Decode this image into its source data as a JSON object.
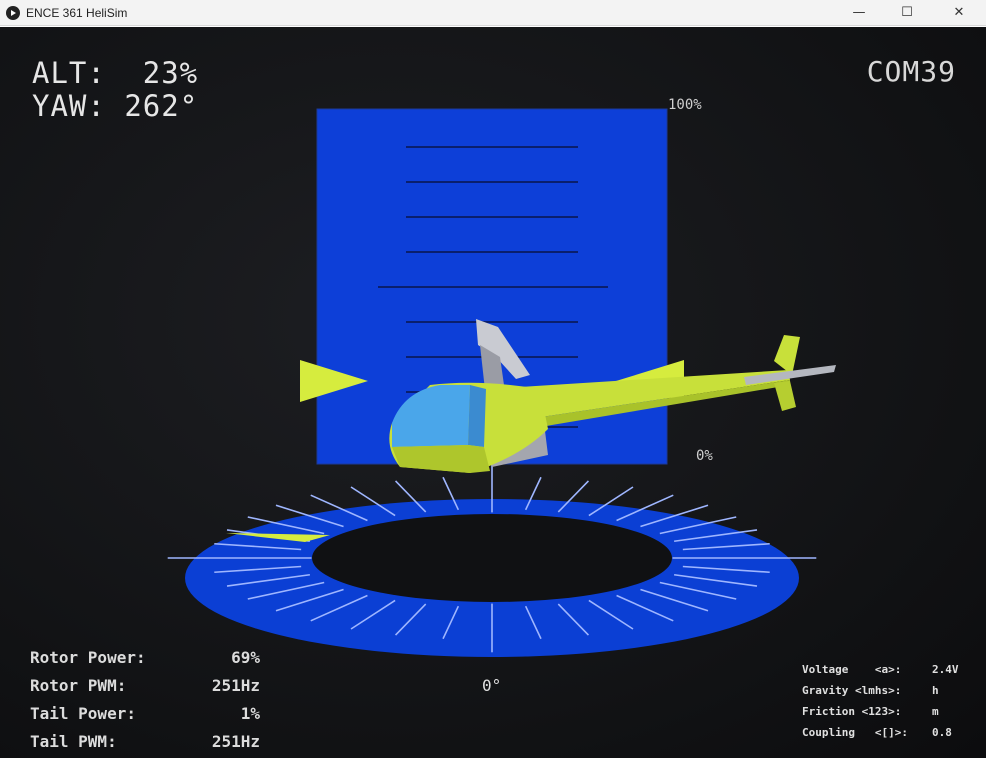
{
  "window": {
    "title": "ENCE 361 HeliSim",
    "minimize_glyph": "—",
    "maximize_glyph": "☐",
    "close_glyph": "✕"
  },
  "readouts": {
    "alt_label": "ALT:",
    "alt_value": "23%",
    "yaw_label": "YAW:",
    "yaw_value": "262°",
    "port": "COM39"
  },
  "altitude_gauge": {
    "top_label": "100%",
    "bottom_label": "0%",
    "altitude_percent": 23
  },
  "yaw_dial": {
    "zero_label": "0°",
    "yaw_degrees": 262
  },
  "stats": [
    {
      "label": "Rotor Power:",
      "value": "69%"
    },
    {
      "label": "Rotor PWM:",
      "value": "251Hz"
    },
    {
      "label": "Tail Power:",
      "value": "1%"
    },
    {
      "label": "Tail PWM:",
      "value": "251Hz"
    }
  ],
  "keys": [
    {
      "label": "Voltage    <a>:",
      "value": "2.4V"
    },
    {
      "label": "Gravity <lmhs>:",
      "value": "h"
    },
    {
      "label": "Friction <123>:",
      "value": "m"
    },
    {
      "label": "Coupling   <[]>:",
      "value": "0.8"
    }
  ],
  "colors": {
    "gauge_blue": "#0d3fd8",
    "heli_body": "#c8e03a",
    "cockpit": "#4aa6ea",
    "indicator": "#d6ec3e"
  }
}
